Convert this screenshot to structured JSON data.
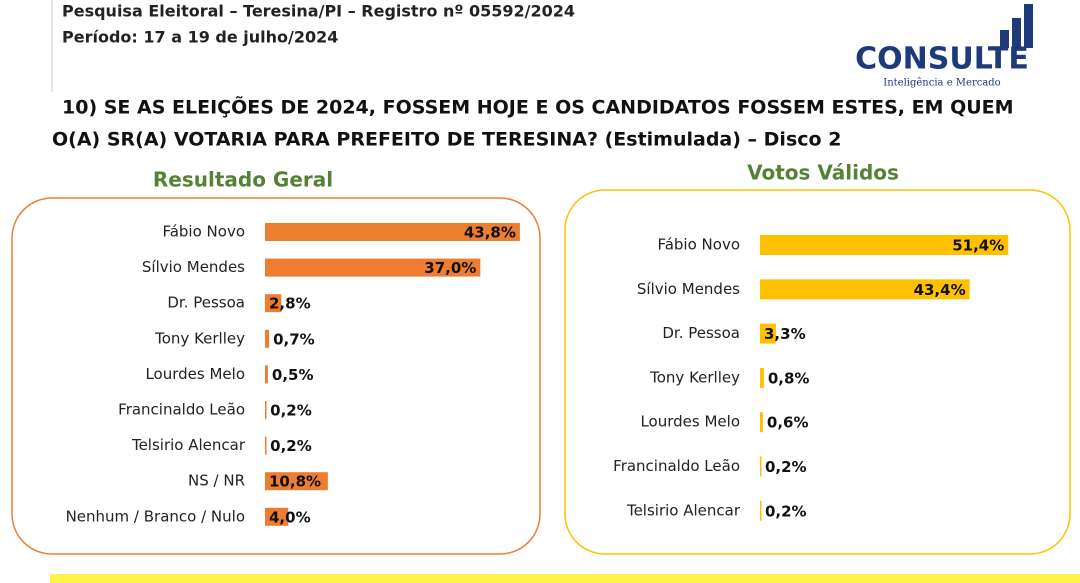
{
  "header": {
    "line1": "Pesquisa Eleitoral – Teresina/PI  – Registro nº 05592/2024",
    "line2": "Período: 17 a 19 de julho/2024",
    "question_line1": "10) SE AS ELEIÇÕES DE 2024, FOSSEM HOJE E OS CANDIDATOS FOSSEM ESTES, EM QUEM",
    "question_line2": "O(A) SR(A) VOTARIA PARA PREFEITO DE TERESINA? (Estimulada) – Disco 2",
    "logo": "CONSULTE",
    "logo_tagline": "Inteligência e Mercado"
  },
  "chart_data": [
    {
      "type": "bar",
      "orientation": "horizontal",
      "title": "Resultado Geral",
      "color": "#ed7d31",
      "categories": [
        "Fábio Novo",
        "Sílvio Mendes",
        "Dr. Pessoa",
        "Tony Kerlley",
        "Lourdes Melo",
        "Francinaldo Leão",
        "Telsirio Alencar",
        "NS / NR",
        "Nenhum / Branco / Nulo"
      ],
      "values": [
        43.8,
        37.0,
        2.8,
        0.7,
        0.5,
        0.2,
        0.2,
        10.8,
        4.0
      ],
      "value_labels": [
        "43,8%",
        "37,0%",
        "2,8%",
        "0,7%",
        "0,5%",
        "0,2%",
        "0,2%",
        "10,8%",
        "4,0%"
      ]
    },
    {
      "type": "bar",
      "orientation": "horizontal",
      "title": "Votos Válidos",
      "color": "#ffc000",
      "categories": [
        "Fábio Novo",
        "Sílvio Mendes",
        "Dr. Pessoa",
        "Tony Kerlley",
        "Lourdes Melo",
        "Francinaldo Leão",
        "Telsirio Alencar"
      ],
      "values": [
        51.4,
        43.4,
        3.3,
        0.8,
        0.6,
        0.2,
        0.2
      ],
      "value_labels": [
        "51,4%",
        "43,4%",
        "3,3%",
        "0,8%",
        "0,6%",
        "0,2%",
        "0,2%"
      ]
    }
  ]
}
